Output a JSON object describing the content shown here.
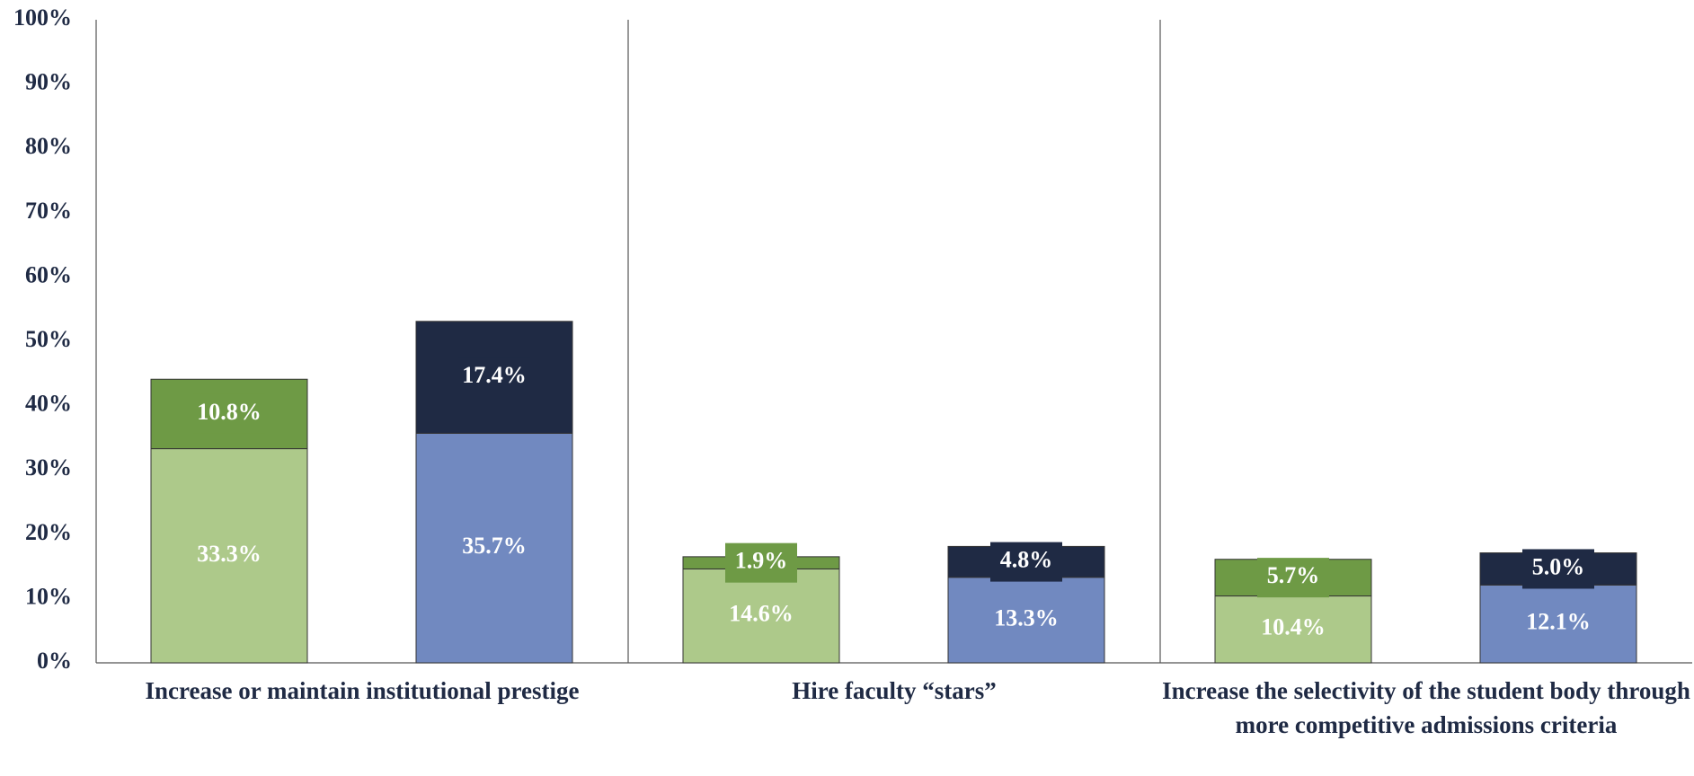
{
  "chart_data": {
    "type": "stacked_bar",
    "categories": [
      "Increase or maintain institutional prestige",
      "Hire faculty “stars”",
      "Increase the selectivity of the student body through more competitive admissions criteria"
    ],
    "series": [
      {
        "color": "#adc98a",
        "stack": 0,
        "values": [
          33.3,
          14.6,
          10.4
        ],
        "value_labels": [
          "33.3%",
          "14.6%",
          "10.4%"
        ]
      },
      {
        "color": "#6e9a45",
        "stack": 0,
        "values": [
          10.8,
          1.9,
          5.7
        ],
        "value_labels": [
          "10.8%",
          "1.9%",
          "5.7%"
        ]
      },
      {
        "color": "#7189c0",
        "stack": 1,
        "values": [
          35.7,
          13.3,
          12.1
        ],
        "value_labels": [
          "35.7%",
          "13.3%",
          "12.1%"
        ]
      },
      {
        "color": "#1f2a44",
        "stack": 1,
        "values": [
          17.4,
          4.8,
          5.0
        ],
        "value_labels": [
          "17.4%",
          "4.8%",
          "5.0%"
        ]
      }
    ],
    "ylim": [
      0,
      100
    ],
    "yticks": [
      {
        "value": 0,
        "label": "0%"
      },
      {
        "value": 10,
        "label": "10%"
      },
      {
        "value": 20,
        "label": "20%"
      },
      {
        "value": 30,
        "label": "30%"
      },
      {
        "value": 40,
        "label": "40%"
      },
      {
        "value": 50,
        "label": "50%"
      },
      {
        "value": 60,
        "label": "60%"
      },
      {
        "value": 70,
        "label": "70%"
      },
      {
        "value": 80,
        "label": "80%"
      },
      {
        "value": 90,
        "label": "90%"
      },
      {
        "value": 100,
        "label": "100%"
      }
    ],
    "grid": false
  }
}
